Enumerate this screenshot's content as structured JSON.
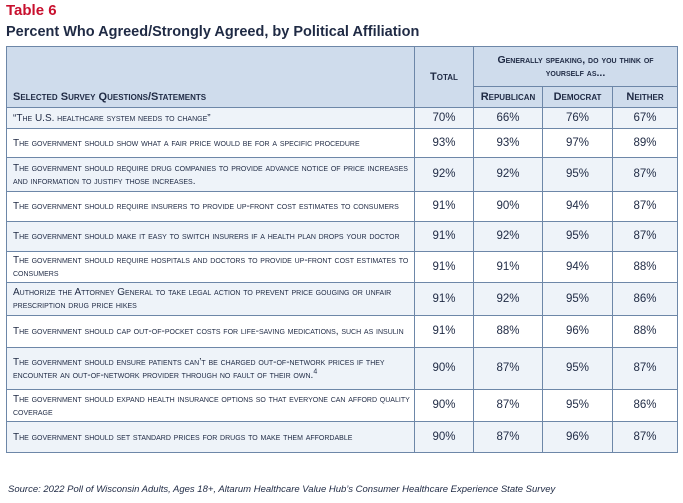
{
  "table_label": "Table 6",
  "title": "Percent Who Agreed/Strongly Agreed, by Political Affiliation",
  "headers": {
    "question": "Selected Survey Questions/Statements",
    "total": "Total",
    "group": "Generally speaking, do you think of yourself as...",
    "republican": "Republican",
    "democrat": "Democrat",
    "neither": "Neither"
  },
  "rows": [
    {
      "q": "“The U.S. healthcare system needs to change”",
      "total": "70%",
      "rep": "66%",
      "dem": "76%",
      "nei": "67%"
    },
    {
      "q": "The government should show what a fair price would be for a specific procedure",
      "total": "93%",
      "rep": "93%",
      "dem": "97%",
      "nei": "89%"
    },
    {
      "q": "The government should require drug companies to provide advance notice of price increases and information to justify those increases.",
      "total": "92%",
      "rep": "92%",
      "dem": "95%",
      "nei": "87%"
    },
    {
      "q": "The government should require insurers to provide up-front cost estimates to consumers",
      "total": "91%",
      "rep": "90%",
      "dem": "94%",
      "nei": "87%"
    },
    {
      "q": "The government should make it easy to switch insurers if a health plan drops your doctor",
      "total": "91%",
      "rep": "92%",
      "dem": "95%",
      "nei": "87%"
    },
    {
      "q": "The government should require hospitals and doctors to provide up-front cost estimates to consumers",
      "total": "91%",
      "rep": "91%",
      "dem": "94%",
      "nei": "88%"
    },
    {
      "q": "Authorize the Attorney General to take legal action to prevent price gouging or unfair prescription drug price hikes",
      "total": "91%",
      "rep": "92%",
      "dem": "95%",
      "nei": "86%"
    },
    {
      "q": "The government should cap out-of-pocket costs for life-saving medications, such as insulin",
      "total": "91%",
      "rep": "88%",
      "dem": "96%",
      "nei": "88%"
    },
    {
      "q": "The government should ensure patients can’t be charged out-of-network prices if they encounter an out-of-network provider through no fault of their own.",
      "footnote": "4",
      "total": "90%",
      "rep": "87%",
      "dem": "95%",
      "nei": "87%"
    },
    {
      "q": "The government should expand health insurance options so that everyone can afford quality coverage",
      "total": "90%",
      "rep": "87%",
      "dem": "95%",
      "nei": "86%"
    },
    {
      "q": "The government should set standard prices for drugs to make them affordable",
      "total": "90%",
      "rep": "87%",
      "dem": "96%",
      "nei": "87%"
    }
  ],
  "source": "Source: 2022 Poll of Wisconsin Adults, Ages 18+, Altarum Healthcare Value Hub’s Consumer Healthcare Experience State Survey"
}
